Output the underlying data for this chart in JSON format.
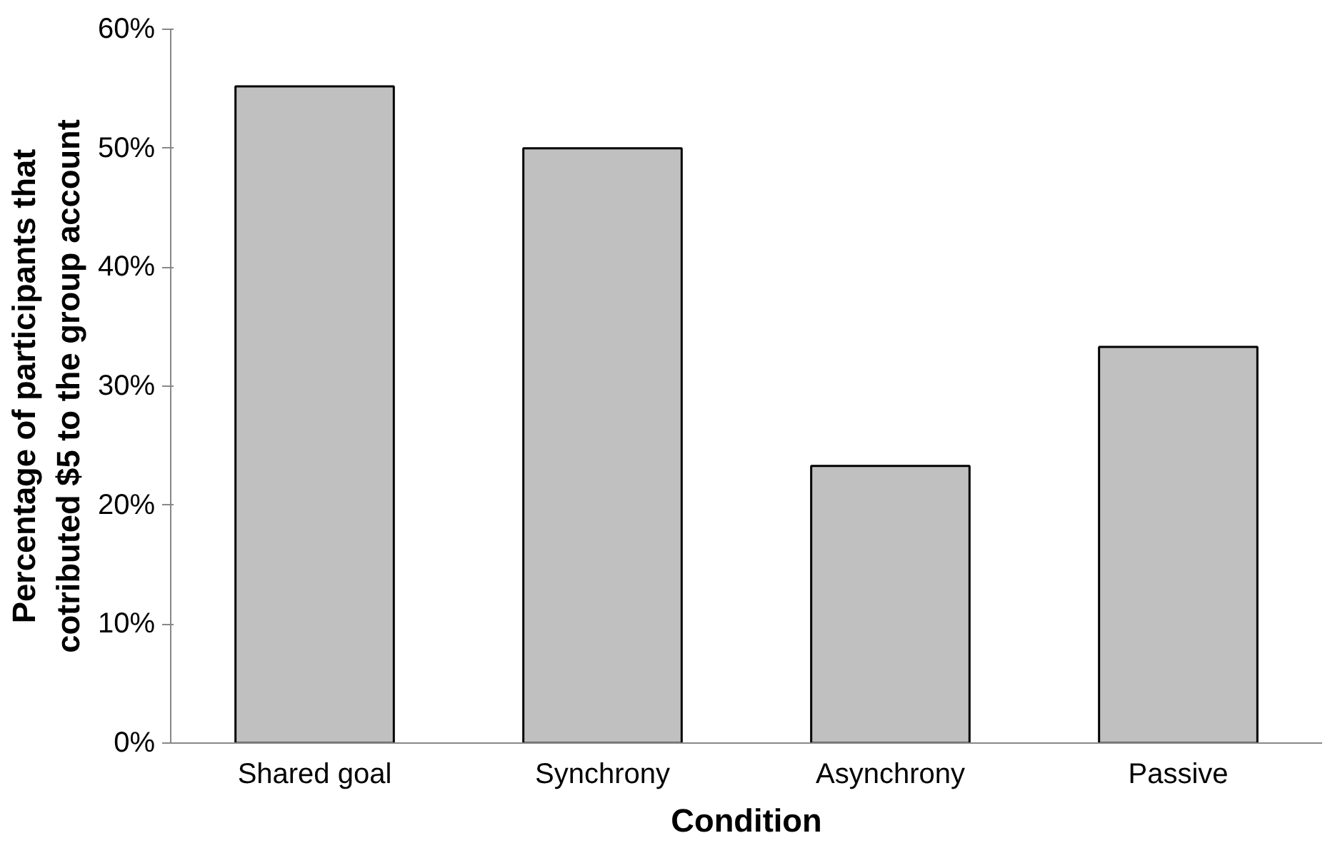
{
  "chart_data": {
    "type": "bar",
    "categories": [
      "Shared goal",
      "Synchrony",
      "Asynchrony",
      "Passive"
    ],
    "values": [
      55.2,
      50.0,
      23.3,
      33.3
    ],
    "color": "#c0c0c0",
    "xlabel": "Condition",
    "ylabel": "Percentage of participants that\ncotributed $5 to the group account",
    "ylim": [
      0,
      60
    ],
    "yticks": [
      {
        "value": 0,
        "label": "0%"
      },
      {
        "value": 10,
        "label": "10%"
      },
      {
        "value": 20,
        "label": "20%"
      },
      {
        "value": 30,
        "label": "30%"
      },
      {
        "value": 40,
        "label": "40%"
      },
      {
        "value": 50,
        "label": "50%"
      },
      {
        "value": 60,
        "label": "60%"
      }
    ],
    "grid": false
  }
}
